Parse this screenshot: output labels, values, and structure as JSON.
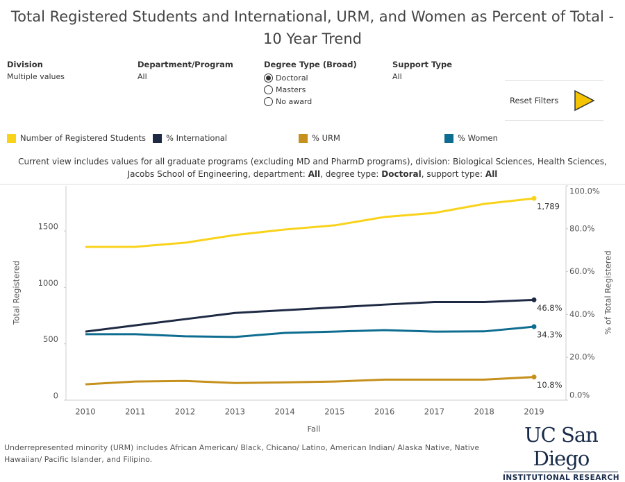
{
  "header": {
    "title": "Total Registered Students and International, URM, and Women as Percent of Total - 10 Year Trend"
  },
  "filters": [
    {
      "label": "Division",
      "value": "Multiple values"
    },
    {
      "label": "Department/Program",
      "value": "All"
    },
    {
      "label": "Degree Type (Broad)",
      "options": [
        {
          "label": "Doctoral",
          "selected": true
        },
        {
          "label": "Masters",
          "selected": false
        },
        {
          "label": "No award",
          "selected": false
        }
      ]
    },
    {
      "label": "Support Type",
      "value": "All"
    }
  ],
  "reset_button": "Reset Filters",
  "description": [
    "Current view includes values for all graduate programs (excluding MD and PharmD programs), division: Biological Sciences, Health Sciences, Jacobs School of Engineering, department: ",
    "All",
    ", degree type: ",
    "Doctoral",
    ", support type: ",
    "All"
  ],
  "chart_data": {
    "type": "line",
    "categories": [
      "2010",
      "2011",
      "2012",
      "2013",
      "2014",
      "2015",
      "2016",
      "2017",
      "2018",
      "2019"
    ],
    "x_label": "Fall",
    "y_label": "Total Registered",
    "y2_label": "% of Total Registered",
    "ylim": [
      0,
      1900
    ],
    "yticks": [
      0,
      500,
      1000,
      1500
    ],
    "y2lim": [
      0,
      100
    ],
    "y2ticks": [
      {
        "value": 0,
        "label": "0.0%"
      },
      {
        "value": 20,
        "label": "20.0%"
      },
      {
        "value": 40,
        "label": "40.0%"
      },
      {
        "value": 60,
        "label": "60.0%"
      },
      {
        "value": 80,
        "label": "80.0%"
      },
      {
        "value": 100,
        "label": "100.0%"
      }
    ],
    "grid": false,
    "series": [
      {
        "name": "Number of Registered Students",
        "color": "#f9d21a",
        "values": [
          1359,
          1360,
          1396,
          1464,
          1513,
          1550,
          1624,
          1660,
          1740,
          1789
        ],
        "value_labels": [
          null,
          null,
          null,
          null,
          null,
          null,
          null,
          null,
          null,
          "1,789"
        ]
      },
      {
        "name": "% International",
        "color": "#1e2a44",
        "axis": "y2",
        "values": [
          32.0,
          34.9,
          37.8,
          40.7,
          42.0,
          43.3,
          44.6,
          45.8,
          45.8,
          46.8
        ],
        "value_labels": [
          null,
          null,
          null,
          null,
          null,
          null,
          null,
          null,
          null,
          "46.8%"
        ]
      },
      {
        "name": "% URM",
        "color": "#c5901c",
        "axis": "y2",
        "values": [
          7.4,
          8.7,
          9.0,
          8.0,
          8.3,
          8.7,
          9.6,
          9.6,
          9.6,
          10.8
        ],
        "value_labels": [
          null,
          null,
          null,
          null,
          null,
          null,
          null,
          null,
          null,
          "10.8%"
        ]
      },
      {
        "name": "% Women",
        "color": "#0d6c8f",
        "axis": "y2",
        "values": [
          30.8,
          30.8,
          29.8,
          29.5,
          31.4,
          32.0,
          32.7,
          32.0,
          32.1,
          34.3
        ],
        "value_labels": [
          null,
          null,
          null,
          null,
          null,
          null,
          null,
          null,
          null,
          "34.3%"
        ]
      }
    ]
  },
  "footer": {
    "note": "Underrepresented minority (URM) includes African American/ Black, Chicano/ Latino, American Indian/ Alaska Native, Native Hawaiian/ Pacific Islander, and Filipino.",
    "logo": "UC San Diego",
    "logo_sub": "INSTITUTIONAL RESEARCH"
  }
}
